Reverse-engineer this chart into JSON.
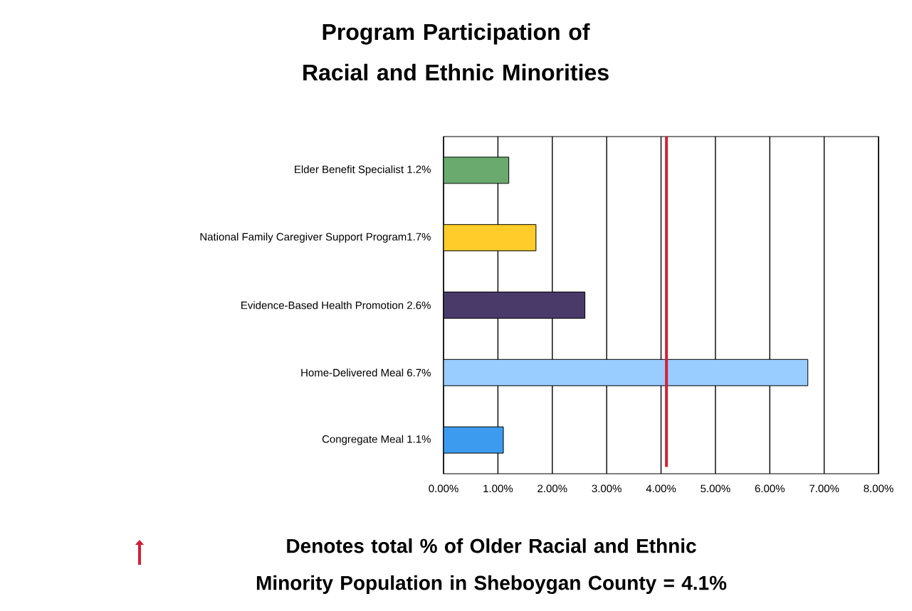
{
  "chart_data": {
    "type": "bar",
    "orientation": "horizontal",
    "title": "Program Participation of Racial and Ethnic Minorities",
    "categories": [
      "Elder Benefit Specialist 1.2%",
      "National Family Caregiver Support Program1.7%",
      "Evidence-Based Health Promotion 2.6%",
      "Home-Delivered Meal 6.7%",
      "Congregate Meal 1.1%"
    ],
    "values": [
      1.2,
      1.7,
      2.6,
      6.7,
      1.1
    ],
    "colors": [
      "#6aaa6e",
      "#ffcc29",
      "#4a3a6a",
      "#99ccff",
      "#3d9bef"
    ],
    "xlim": [
      0,
      8
    ],
    "xticks": [
      {
        "value": 0,
        "label": "0.00%"
      },
      {
        "value": 1,
        "label": "1.00%"
      },
      {
        "value": 2,
        "label": "2.00%"
      },
      {
        "value": 3,
        "label": "3.00%"
      },
      {
        "value": 4,
        "label": "4.00%"
      },
      {
        "value": 5,
        "label": "5.00%"
      },
      {
        "value": 6,
        "label": "6.00%"
      },
      {
        "value": 7,
        "label": "7.00%"
      },
      {
        "value": 8,
        "label": "8.00%"
      }
    ],
    "grid": "x",
    "ref_lines": [
      {
        "axis": "x",
        "value": 4.1,
        "color": "#d41f35"
      }
    ],
    "annotations": [
      "Denotes total  % of Older Racial and Ethnic Minority Population in Sheboygan County = 4.1%"
    ]
  }
}
